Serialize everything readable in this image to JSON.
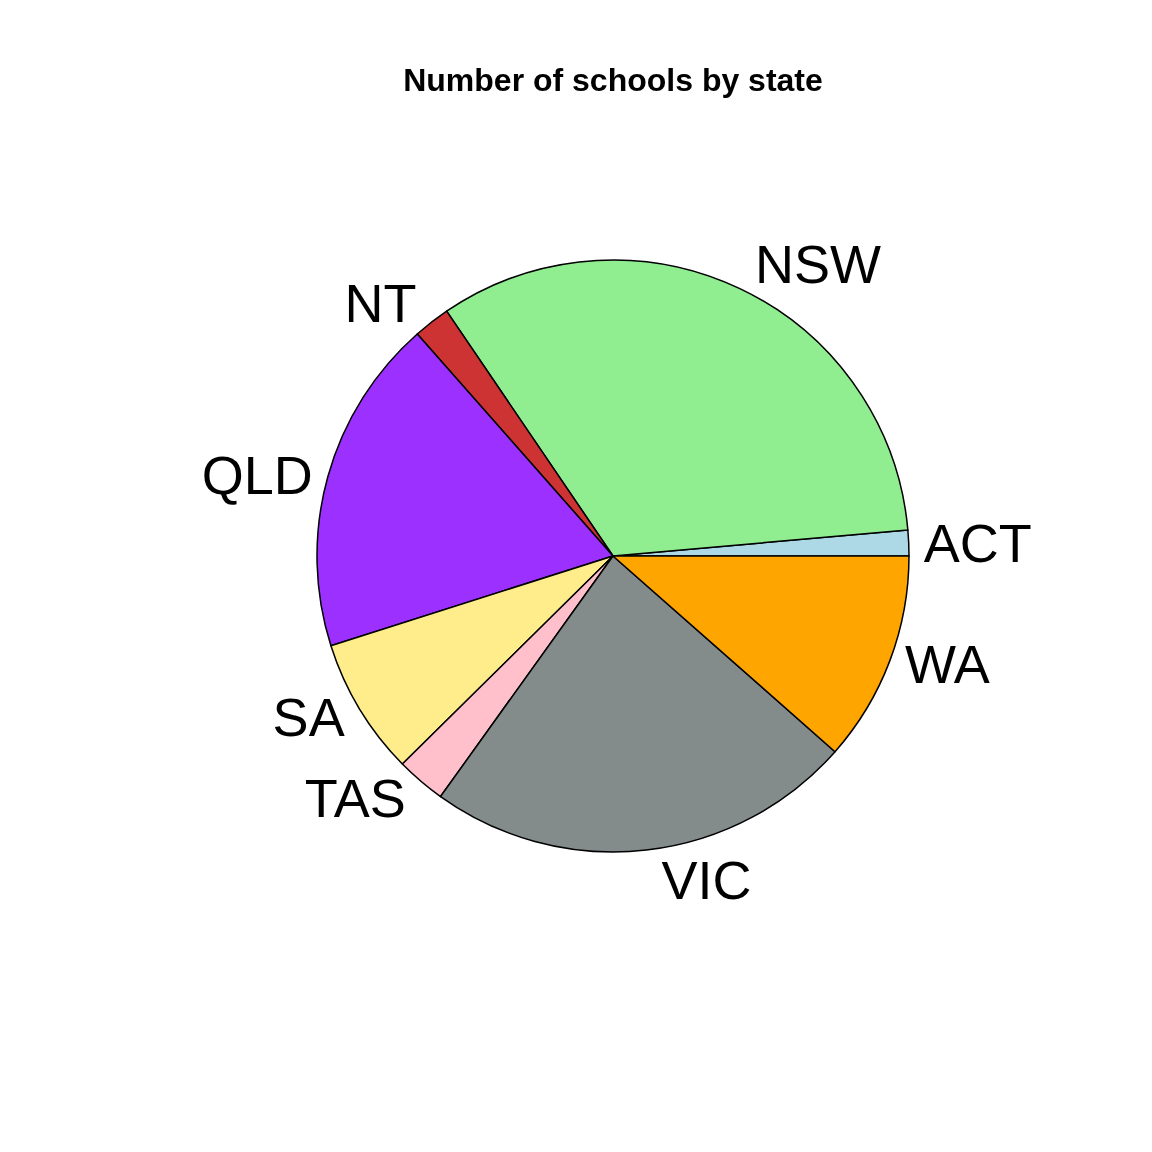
{
  "chart_data": {
    "type": "pie",
    "title": "Number of schools by state",
    "categories": [
      "ACT",
      "NSW",
      "NT",
      "QLD",
      "SA",
      "TAS",
      "VIC",
      "WA"
    ],
    "values": [
      1.4,
      33.1,
      2.0,
      18.4,
      7.5,
      2.7,
      23.4,
      11.5
    ],
    "colors": [
      "#add8e6",
      "#90ee90",
      "#cd3333",
      "#9b30ff",
      "#ffec8b",
      "#ffc0cb",
      "#838b8b",
      "#ffa500"
    ]
  }
}
